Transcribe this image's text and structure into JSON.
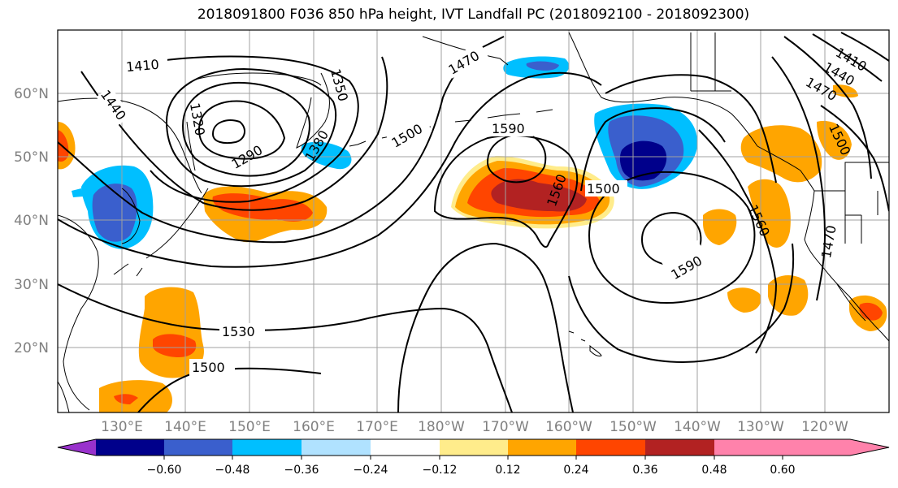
{
  "title": "2018091800 F036 850 hPa height, IVT Landfall PC (2018092100 - 2018092300)",
  "map": {
    "lat_labels": [
      "60°N",
      "50°N",
      "40°N",
      "30°N",
      "20°N"
    ],
    "lon_labels": [
      "130°E",
      "140°E",
      "150°E",
      "160°E",
      "170°E",
      "180°W",
      "170°W",
      "160°W",
      "150°W",
      "140°W",
      "130°W",
      "120°W"
    ],
    "contour_labels": [
      "1410",
      "1440",
      "1320",
      "1290",
      "1350",
      "1380",
      "1470",
      "1500",
      "1590",
      "1560",
      "1500",
      "1560",
      "1590",
      "1530",
      "1500",
      "1410",
      "1440",
      "1470",
      "1500",
      "1470"
    ]
  },
  "colorbar": {
    "tick_labels": [
      "−0.60",
      "−0.48",
      "−0.36",
      "−0.24",
      "−0.12",
      "0.12",
      "0.24",
      "0.36",
      "0.48",
      "0.60"
    ],
    "colors": [
      "#9932cc",
      "#00008b",
      "#3a5fcd",
      "#00bfff",
      "#b0e2ff",
      "#ffffff",
      "#ffec8b",
      "#ffa500",
      "#ff4500",
      "#b22222",
      "#ff82ab"
    ]
  }
}
